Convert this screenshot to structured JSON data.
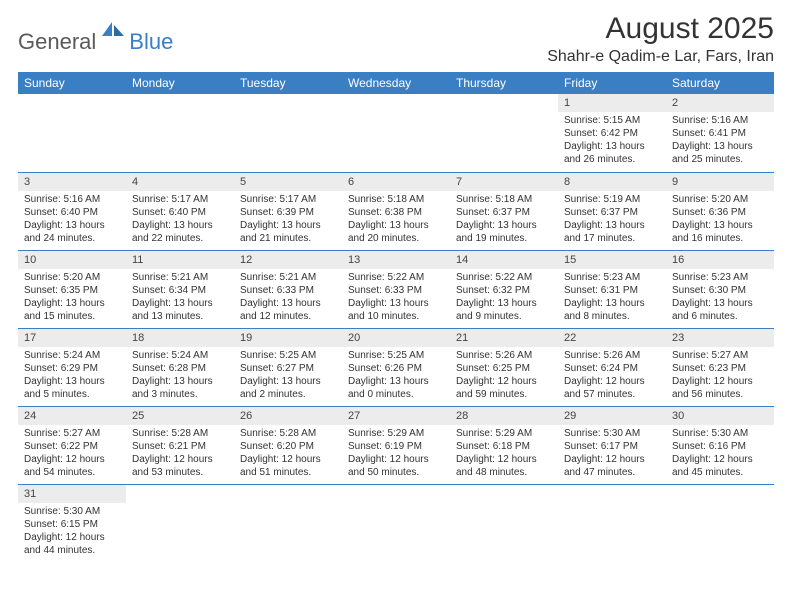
{
  "logo": {
    "part1": "General",
    "part2": "Blue"
  },
  "header": {
    "title": "August 2025",
    "location": "Shahr-e Qadim-e Lar, Fars, Iran"
  },
  "colors": {
    "header_bg": "#3a7fc4",
    "header_text": "#ffffff",
    "daynum_bg": "#ececec",
    "row_border": "#3a7fc4",
    "logo_gray": "#5a5a5a",
    "logo_blue": "#3a7fc4"
  },
  "weekdays": [
    "Sunday",
    "Monday",
    "Tuesday",
    "Wednesday",
    "Thursday",
    "Friday",
    "Saturday"
  ],
  "weeks": [
    [
      null,
      null,
      null,
      null,
      null,
      {
        "d": "1",
        "sr": "Sunrise: 5:15 AM",
        "ss": "Sunset: 6:42 PM",
        "dl1": "Daylight: 13 hours",
        "dl2": "and 26 minutes."
      },
      {
        "d": "2",
        "sr": "Sunrise: 5:16 AM",
        "ss": "Sunset: 6:41 PM",
        "dl1": "Daylight: 13 hours",
        "dl2": "and 25 minutes."
      }
    ],
    [
      {
        "d": "3",
        "sr": "Sunrise: 5:16 AM",
        "ss": "Sunset: 6:40 PM",
        "dl1": "Daylight: 13 hours",
        "dl2": "and 24 minutes."
      },
      {
        "d": "4",
        "sr": "Sunrise: 5:17 AM",
        "ss": "Sunset: 6:40 PM",
        "dl1": "Daylight: 13 hours",
        "dl2": "and 22 minutes."
      },
      {
        "d": "5",
        "sr": "Sunrise: 5:17 AM",
        "ss": "Sunset: 6:39 PM",
        "dl1": "Daylight: 13 hours",
        "dl2": "and 21 minutes."
      },
      {
        "d": "6",
        "sr": "Sunrise: 5:18 AM",
        "ss": "Sunset: 6:38 PM",
        "dl1": "Daylight: 13 hours",
        "dl2": "and 20 minutes."
      },
      {
        "d": "7",
        "sr": "Sunrise: 5:18 AM",
        "ss": "Sunset: 6:37 PM",
        "dl1": "Daylight: 13 hours",
        "dl2": "and 19 minutes."
      },
      {
        "d": "8",
        "sr": "Sunrise: 5:19 AM",
        "ss": "Sunset: 6:37 PM",
        "dl1": "Daylight: 13 hours",
        "dl2": "and 17 minutes."
      },
      {
        "d": "9",
        "sr": "Sunrise: 5:20 AM",
        "ss": "Sunset: 6:36 PM",
        "dl1": "Daylight: 13 hours",
        "dl2": "and 16 minutes."
      }
    ],
    [
      {
        "d": "10",
        "sr": "Sunrise: 5:20 AM",
        "ss": "Sunset: 6:35 PM",
        "dl1": "Daylight: 13 hours",
        "dl2": "and 15 minutes."
      },
      {
        "d": "11",
        "sr": "Sunrise: 5:21 AM",
        "ss": "Sunset: 6:34 PM",
        "dl1": "Daylight: 13 hours",
        "dl2": "and 13 minutes."
      },
      {
        "d": "12",
        "sr": "Sunrise: 5:21 AM",
        "ss": "Sunset: 6:33 PM",
        "dl1": "Daylight: 13 hours",
        "dl2": "and 12 minutes."
      },
      {
        "d": "13",
        "sr": "Sunrise: 5:22 AM",
        "ss": "Sunset: 6:33 PM",
        "dl1": "Daylight: 13 hours",
        "dl2": "and 10 minutes."
      },
      {
        "d": "14",
        "sr": "Sunrise: 5:22 AM",
        "ss": "Sunset: 6:32 PM",
        "dl1": "Daylight: 13 hours",
        "dl2": "and 9 minutes."
      },
      {
        "d": "15",
        "sr": "Sunrise: 5:23 AM",
        "ss": "Sunset: 6:31 PM",
        "dl1": "Daylight: 13 hours",
        "dl2": "and 8 minutes."
      },
      {
        "d": "16",
        "sr": "Sunrise: 5:23 AM",
        "ss": "Sunset: 6:30 PM",
        "dl1": "Daylight: 13 hours",
        "dl2": "and 6 minutes."
      }
    ],
    [
      {
        "d": "17",
        "sr": "Sunrise: 5:24 AM",
        "ss": "Sunset: 6:29 PM",
        "dl1": "Daylight: 13 hours",
        "dl2": "and 5 minutes."
      },
      {
        "d": "18",
        "sr": "Sunrise: 5:24 AM",
        "ss": "Sunset: 6:28 PM",
        "dl1": "Daylight: 13 hours",
        "dl2": "and 3 minutes."
      },
      {
        "d": "19",
        "sr": "Sunrise: 5:25 AM",
        "ss": "Sunset: 6:27 PM",
        "dl1": "Daylight: 13 hours",
        "dl2": "and 2 minutes."
      },
      {
        "d": "20",
        "sr": "Sunrise: 5:25 AM",
        "ss": "Sunset: 6:26 PM",
        "dl1": "Daylight: 13 hours",
        "dl2": "and 0 minutes."
      },
      {
        "d": "21",
        "sr": "Sunrise: 5:26 AM",
        "ss": "Sunset: 6:25 PM",
        "dl1": "Daylight: 12 hours",
        "dl2": "and 59 minutes."
      },
      {
        "d": "22",
        "sr": "Sunrise: 5:26 AM",
        "ss": "Sunset: 6:24 PM",
        "dl1": "Daylight: 12 hours",
        "dl2": "and 57 minutes."
      },
      {
        "d": "23",
        "sr": "Sunrise: 5:27 AM",
        "ss": "Sunset: 6:23 PM",
        "dl1": "Daylight: 12 hours",
        "dl2": "and 56 minutes."
      }
    ],
    [
      {
        "d": "24",
        "sr": "Sunrise: 5:27 AM",
        "ss": "Sunset: 6:22 PM",
        "dl1": "Daylight: 12 hours",
        "dl2": "and 54 minutes."
      },
      {
        "d": "25",
        "sr": "Sunrise: 5:28 AM",
        "ss": "Sunset: 6:21 PM",
        "dl1": "Daylight: 12 hours",
        "dl2": "and 53 minutes."
      },
      {
        "d": "26",
        "sr": "Sunrise: 5:28 AM",
        "ss": "Sunset: 6:20 PM",
        "dl1": "Daylight: 12 hours",
        "dl2": "and 51 minutes."
      },
      {
        "d": "27",
        "sr": "Sunrise: 5:29 AM",
        "ss": "Sunset: 6:19 PM",
        "dl1": "Daylight: 12 hours",
        "dl2": "and 50 minutes."
      },
      {
        "d": "28",
        "sr": "Sunrise: 5:29 AM",
        "ss": "Sunset: 6:18 PM",
        "dl1": "Daylight: 12 hours",
        "dl2": "and 48 minutes."
      },
      {
        "d": "29",
        "sr": "Sunrise: 5:30 AM",
        "ss": "Sunset: 6:17 PM",
        "dl1": "Daylight: 12 hours",
        "dl2": "and 47 minutes."
      },
      {
        "d": "30",
        "sr": "Sunrise: 5:30 AM",
        "ss": "Sunset: 6:16 PM",
        "dl1": "Daylight: 12 hours",
        "dl2": "and 45 minutes."
      }
    ],
    [
      {
        "d": "31",
        "sr": "Sunrise: 5:30 AM",
        "ss": "Sunset: 6:15 PM",
        "dl1": "Daylight: 12 hours",
        "dl2": "and 44 minutes."
      },
      null,
      null,
      null,
      null,
      null,
      null
    ]
  ]
}
